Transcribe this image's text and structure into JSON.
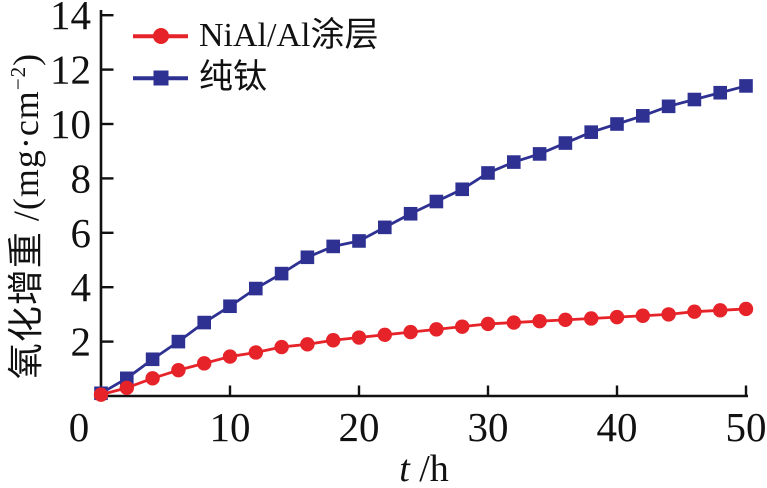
{
  "figure": {
    "background": "#ffffff",
    "axis_color": "#111111",
    "text_color": "#111111"
  },
  "chart_data": {
    "type": "line",
    "title": "",
    "xlabel": "t /h",
    "ylabel": "氧化增重 /(mg·cm−2)",
    "xlim": [
      0,
      50
    ],
    "ylim": [
      0,
      14
    ],
    "xticks": [
      0,
      10,
      20,
      30,
      40,
      50
    ],
    "yticks": [
      0,
      2,
      4,
      6,
      8,
      10,
      12,
      14
    ],
    "grid": false,
    "legend_position": "top-left-inside",
    "x": [
      0,
      2,
      4,
      6,
      8,
      10,
      12,
      14,
      16,
      18,
      20,
      22,
      24,
      26,
      28,
      30,
      32,
      34,
      36,
      38,
      40,
      42,
      44,
      46,
      48,
      50
    ],
    "series": [
      {
        "name": "NiAl/Al涂层",
        "marker": "circle",
        "color": "#e62329",
        "values": [
          0.05,
          0.3,
          0.65,
          0.95,
          1.2,
          1.45,
          1.6,
          1.8,
          1.9,
          2.05,
          2.15,
          2.25,
          2.35,
          2.45,
          2.55,
          2.65,
          2.7,
          2.75,
          2.8,
          2.85,
          2.9,
          2.95,
          3.0,
          3.1,
          3.15,
          3.2
        ]
      },
      {
        "name": "纯钛",
        "marker": "square",
        "color": "#2e3192",
        "values": [
          0.1,
          0.65,
          1.35,
          2.0,
          2.7,
          3.3,
          3.95,
          4.5,
          5.1,
          5.5,
          5.7,
          6.2,
          6.7,
          7.15,
          7.6,
          8.2,
          8.6,
          8.9,
          9.3,
          9.7,
          10.0,
          10.3,
          10.65,
          10.9,
          11.15,
          11.4
        ]
      }
    ]
  },
  "labels": {
    "ylabel_main": "氧化增重",
    "ylabel_unit_open": " /(mg·cm",
    "ylabel_sup": "−2",
    "ylabel_unit_close": ")",
    "xlabel_var": "t",
    "xlabel_unit": " /h"
  }
}
